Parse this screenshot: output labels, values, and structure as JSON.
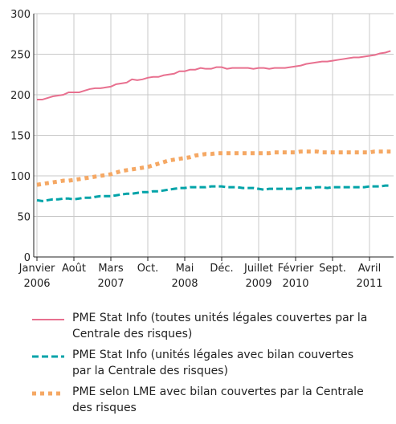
{
  "chart_data": {
    "type": "line",
    "categories": [
      "Janvier",
      null,
      null,
      null,
      null,
      null,
      null,
      "Août",
      null,
      null,
      null,
      null,
      null,
      null,
      "Mars",
      null,
      null,
      null,
      null,
      null,
      null,
      "Oct.",
      null,
      null,
      null,
      null,
      null,
      null,
      "Mai",
      null,
      null,
      null,
      null,
      null,
      null,
      "Déc.",
      null,
      null,
      null,
      null,
      null,
      null,
      "Juillet",
      null,
      null,
      null,
      null,
      null,
      null,
      "Février",
      null,
      null,
      null,
      null,
      null,
      null,
      "Sept.",
      null,
      null,
      null,
      null,
      null,
      null,
      "Avril",
      null,
      null,
      null,
      null
    ],
    "category_years": [
      "2006",
      null,
      null,
      null,
      null,
      null,
      null,
      null,
      null,
      null,
      null,
      null,
      null,
      null,
      "2007",
      null,
      null,
      null,
      null,
      null,
      null,
      null,
      null,
      null,
      null,
      null,
      null,
      null,
      "2008",
      null,
      null,
      null,
      null,
      null,
      null,
      null,
      null,
      null,
      null,
      null,
      null,
      null,
      "2009",
      null,
      null,
      null,
      null,
      null,
      null,
      "2010",
      null,
      null,
      null,
      null,
      null,
      null,
      null,
      null,
      null,
      null,
      null,
      null,
      null,
      "2011",
      null,
      null,
      null,
      null
    ],
    "ylim": [
      0,
      300
    ],
    "yticks": [
      0,
      50,
      100,
      150,
      200,
      250,
      300
    ],
    "grid": true,
    "series": [
      {
        "name": "PME Stat Info (toutes unités légales couvertes par la Centrale des risques)",
        "color": "#e8708f",
        "style": "solid",
        "values": [
          194,
          194,
          196,
          198,
          199,
          200,
          203,
          203,
          203,
          205,
          207,
          208,
          208,
          209,
          210,
          213,
          214,
          215,
          219,
          218,
          219,
          221,
          222,
          222,
          224,
          225,
          226,
          229,
          229,
          231,
          231,
          233,
          232,
          232,
          234,
          234,
          232,
          233,
          233,
          233,
          233,
          232,
          233,
          233,
          232,
          233,
          233,
          233,
          234,
          235,
          236,
          238,
          239,
          240,
          241,
          241,
          242,
          243,
          244,
          245,
          246,
          246,
          247,
          248,
          249,
          251,
          252,
          254
        ]
      },
      {
        "name": "PME Stat Info (unités légales avec bilan couvertes par la Centrale des risques)",
        "color": "#00a3a8",
        "style": "dashed",
        "values": [
          70,
          69,
          70,
          71,
          71,
          72,
          72,
          71,
          72,
          73,
          73,
          74,
          75,
          75,
          75,
          76,
          77,
          78,
          78,
          79,
          80,
          80,
          81,
          81,
          82,
          83,
          84,
          85,
          85,
          86,
          86,
          86,
          86,
          87,
          87,
          87,
          86,
          86,
          86,
          85,
          85,
          85,
          84,
          83,
          84,
          84,
          84,
          84,
          84,
          84,
          85,
          85,
          85,
          86,
          86,
          85,
          86,
          86,
          86,
          86,
          86,
          86,
          86,
          87,
          87,
          87,
          88,
          88
        ]
      },
      {
        "name": "PME selon LME avec bilan couvertes par la Centrale des risques",
        "color": "#f5a864",
        "style": "dotted",
        "values": [
          89,
          90,
          91,
          92,
          93,
          94,
          94,
          95,
          96,
          97,
          98,
          99,
          100,
          101,
          102,
          104,
          106,
          107,
          108,
          109,
          110,
          111,
          113,
          115,
          117,
          119,
          120,
          121,
          122,
          123,
          125,
          126,
          127,
          127,
          128,
          128,
          128,
          128,
          128,
          128,
          128,
          128,
          128,
          128,
          128,
          129,
          129,
          129,
          129,
          129,
          130,
          130,
          130,
          130,
          129,
          129,
          129,
          129,
          129,
          129,
          129,
          129,
          129,
          129,
          130,
          130,
          130,
          130
        ]
      }
    ]
  }
}
